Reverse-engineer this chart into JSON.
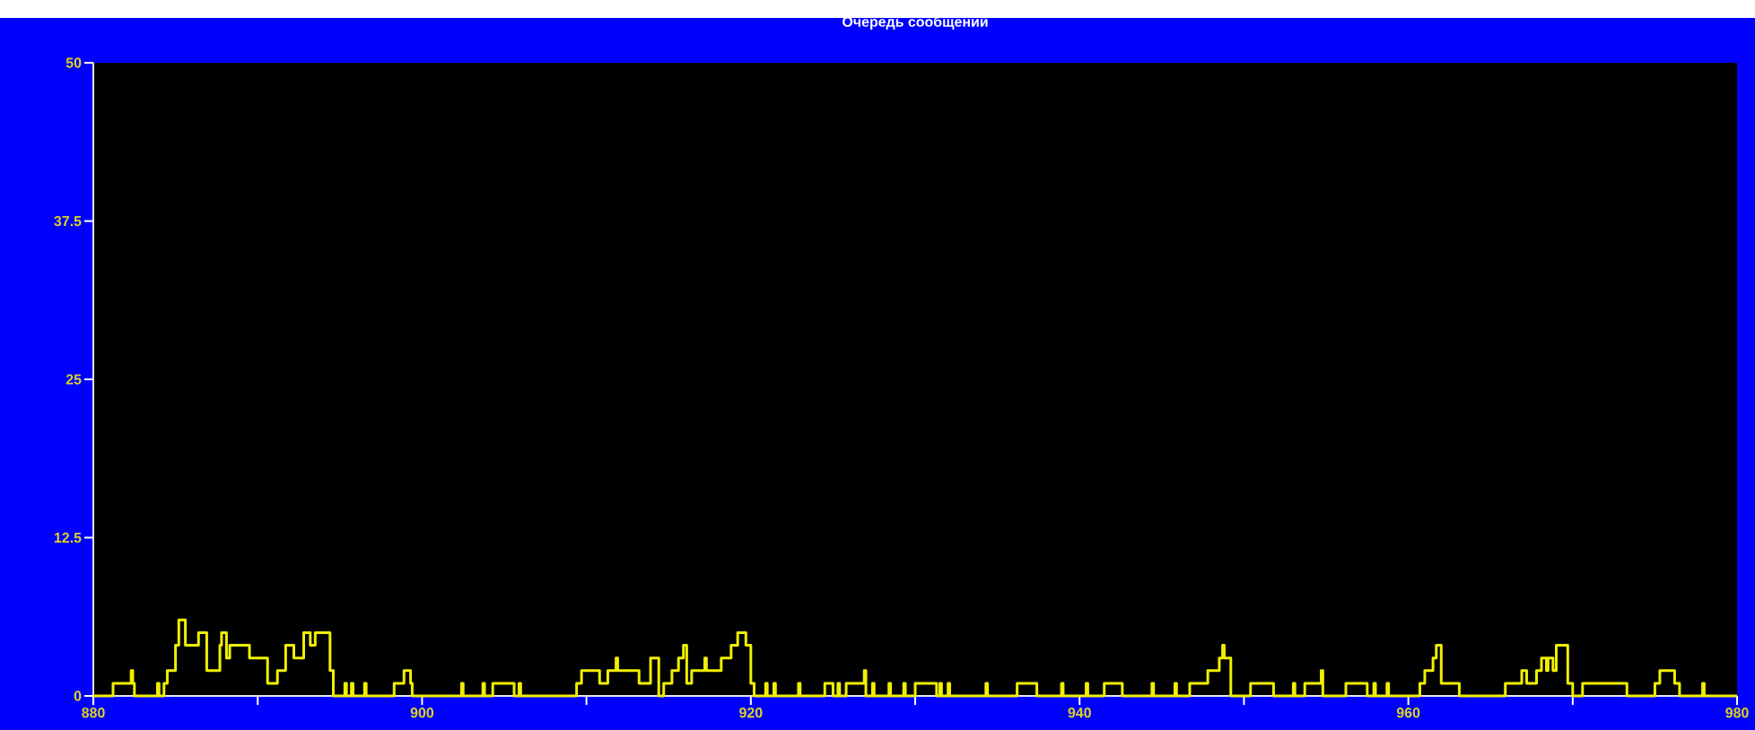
{
  "chart_data": {
    "type": "step",
    "title": "Очередь сообщений",
    "xlim": [
      880,
      980
    ],
    "xticks": [
      880,
      {
        "value": 890,
        "label": null
      },
      900,
      {
        "value": 910,
        "label": null
      },
      920,
      {
        "value": 930,
        "label": null
      },
      940,
      {
        "value": 950,
        "label": null
      },
      960,
      {
        "value": 970,
        "label": null
      },
      980
    ],
    "ylim": [
      0,
      50
    ],
    "yticks": [
      0,
      12.5,
      25,
      37.5,
      50
    ],
    "grid": false,
    "series": [
      {
        "color": "#f0f000",
        "x": [
          880,
          881.2,
          882.3,
          882.4,
          882.5,
          883.9,
          884.0,
          884.3,
          884.5,
          885.0,
          885.2,
          885.6,
          886.4,
          886.9,
          887.7,
          887.8,
          888.1,
          888.3,
          889.5,
          890.6,
          891.2,
          891.7,
          892.2,
          892.8,
          893.2,
          893.5,
          894.4,
          894.6,
          895.3,
          895.4,
          895.7,
          895.8,
          896.5,
          896.6,
          898.3,
          898.9,
          899.3,
          899.4,
          902.4,
          902.5,
          903.7,
          903.8,
          904.3,
          905.6,
          905.9,
          906.0,
          909.4,
          909.7,
          910.8,
          911.3,
          911.8,
          911.9,
          913.2,
          913.9,
          914.4,
          914.7,
          915.2,
          915.6,
          915.9,
          916.1,
          916.4,
          917.2,
          917.3,
          918.2,
          918.8,
          919.2,
          919.7,
          920.0,
          920.2,
          920.9,
          921.0,
          921.4,
          921.5,
          922.9,
          923.0,
          924.5,
          925.0,
          925.3,
          925.4,
          925.8,
          926.9,
          927.0,
          927.4,
          927.5,
          928.4,
          928.5,
          929.3,
          929.4,
          930.0,
          931.3,
          931.5,
          931.6,
          932.0,
          932.1,
          934.3,
          934.4,
          936.2,
          937.4,
          938.9,
          939.0,
          940.4,
          940.5,
          941.5,
          942.6,
          944.4,
          944.5,
          945.8,
          945.9,
          946.7,
          947.8,
          948.5,
          948.7,
          948.8,
          949.2,
          950.4,
          951.8,
          953.0,
          953.1,
          953.7,
          954.7,
          954.8,
          956.2,
          957.5,
          957.9,
          958.0,
          958.7,
          958.8,
          960.7,
          961.0,
          961.5,
          961.7,
          962.0,
          963.1,
          965.9,
          966.9,
          967.2,
          967.8,
          968.1,
          968.4,
          968.5,
          968.8,
          969.0,
          969.7,
          970.0,
          970.6,
          973.3,
          975.0,
          975.3,
          976.2,
          976.5,
          977.9,
          978.0,
          980
        ],
        "values": [
          0,
          1,
          2,
          1,
          0,
          1,
          0,
          1,
          2,
          4,
          6,
          4,
          5,
          2,
          4,
          5,
          3,
          4,
          3,
          1,
          2,
          4,
          3,
          5,
          4,
          5,
          2,
          0,
          1,
          0,
          1,
          0,
          1,
          0,
          1,
          2,
          1,
          0,
          1,
          0,
          1,
          0,
          1,
          0,
          1,
          0,
          1,
          2,
          1,
          2,
          3,
          2,
          1,
          3,
          0,
          1,
          2,
          3,
          4,
          1,
          2,
          3,
          2,
          3,
          4,
          5,
          4,
          1,
          0,
          1,
          0,
          1,
          0,
          1,
          0,
          1,
          0,
          1,
          0,
          1,
          2,
          0,
          1,
          0,
          1,
          0,
          1,
          0,
          1,
          0,
          1,
          0,
          1,
          0,
          1,
          0,
          1,
          0,
          1,
          0,
          1,
          0,
          1,
          0,
          1,
          0,
          1,
          0,
          1,
          2,
          3,
          4,
          3,
          0,
          1,
          0,
          1,
          0,
          1,
          2,
          0,
          1,
          0,
          1,
          0,
          1,
          0,
          1,
          2,
          3,
          4,
          1,
          0,
          1,
          2,
          1,
          2,
          3,
          2,
          3,
          2,
          4,
          1,
          0,
          1,
          0,
          1,
          2,
          1,
          0,
          1,
          0,
          0
        ]
      }
    ]
  }
}
